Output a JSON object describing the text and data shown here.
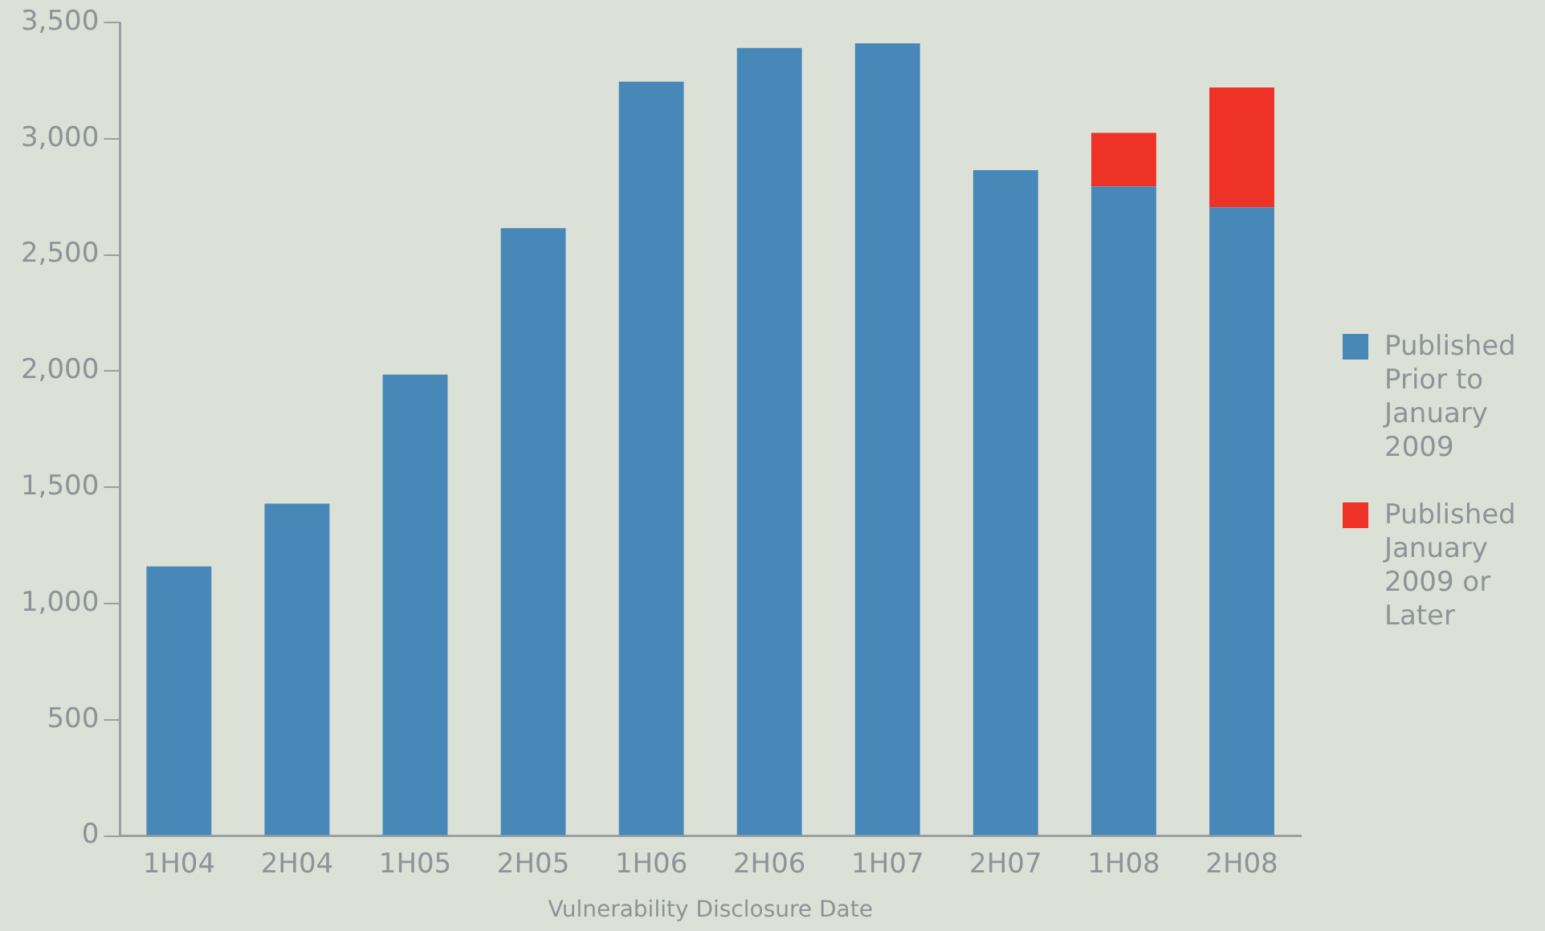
{
  "chart_data": {
    "type": "bar",
    "stacked": true,
    "xlabel": "Vulnerability Disclosure Date",
    "categories": [
      "1H04",
      "2H04",
      "1H05",
      "2H05",
      "1H06",
      "2H06",
      "1H07",
      "2H07",
      "1H08",
      "2H08"
    ],
    "series": [
      {
        "name": "Published Prior to January 2009",
        "color": "#4888b9",
        "values": [
          1160,
          1430,
          1985,
          2615,
          3245,
          3390,
          3410,
          2865,
          2795,
          2705
        ]
      },
      {
        "name": "Published January 2009 or Later",
        "color": "#ee3228",
        "values": [
          null,
          null,
          null,
          null,
          null,
          null,
          null,
          null,
          230,
          515
        ]
      }
    ],
    "ylim": [
      0,
      3500
    ],
    "yticks": [
      0,
      500,
      {
        "value": 1000,
        "label": "1,000"
      },
      {
        "value": 1500,
        "label": "1,500"
      },
      {
        "value": 2000,
        "label": "2,000"
      },
      {
        "value": 2500,
        "label": "2,500"
      },
      {
        "value": 3000,
        "label": "3,000"
      },
      {
        "value": 3500,
        "label": "3,500"
      }
    ],
    "grid": false,
    "legend": "right"
  }
}
